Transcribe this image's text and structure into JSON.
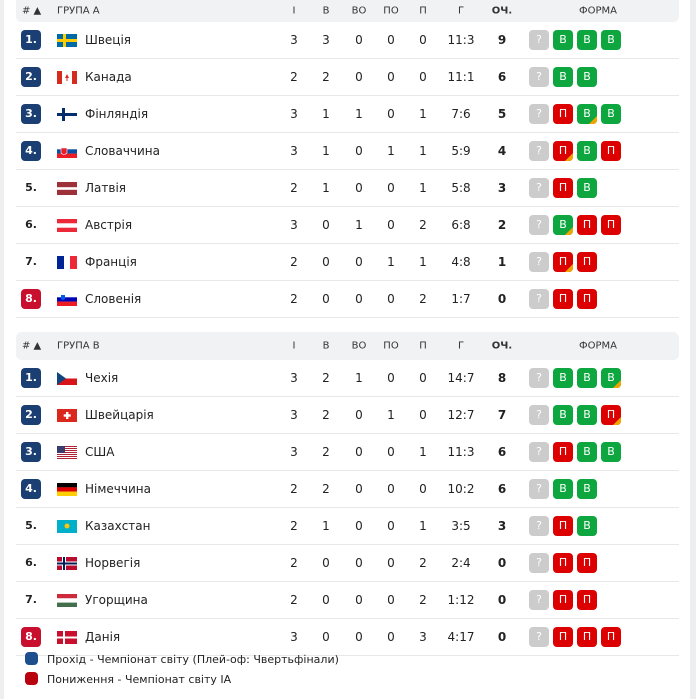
{
  "headers": {
    "rank": "# ▲",
    "i": "І",
    "w": "В",
    "ow": "ВО",
    "ol": "ПО",
    "l": "П",
    "g": "Г",
    "pts": "ОЧ.",
    "form": "ФОРМА"
  },
  "colors": {
    "qualify": "#1c3f73",
    "relegate": "#c8102e",
    "win": "#0ea63f",
    "loss": "#dc0000",
    "unknown": "#cccccc",
    "overtime": "#f0a500"
  },
  "groups": [
    {
      "title": "ГРУПА A",
      "rows": [
        {
          "rank": "1.",
          "zone": "q",
          "flag": "se",
          "team": "Швеція",
          "i": "3",
          "w": "3",
          "ow": "0",
          "ol": "0",
          "l": "0",
          "g": "11:3",
          "pts": "9",
          "form": [
            "?",
            "В",
            "В",
            "В"
          ],
          "ot": []
        },
        {
          "rank": "2.",
          "zone": "q",
          "flag": "ca",
          "team": "Канада",
          "i": "2",
          "w": "2",
          "ow": "0",
          "ol": "0",
          "l": "0",
          "g": "11:1",
          "pts": "6",
          "form": [
            "?",
            "В",
            "В"
          ],
          "ot": []
        },
        {
          "rank": "3.",
          "zone": "q",
          "flag": "fi",
          "team": "Фінляндія",
          "i": "3",
          "w": "1",
          "ow": "1",
          "ol": "0",
          "l": "1",
          "g": "7:6",
          "pts": "5",
          "form": [
            "?",
            "П",
            "В",
            "В"
          ],
          "ot": [
            2
          ]
        },
        {
          "rank": "4.",
          "zone": "q",
          "flag": "sk",
          "team": "Словаччина",
          "i": "3",
          "w": "1",
          "ow": "0",
          "ol": "1",
          "l": "1",
          "g": "5:9",
          "pts": "4",
          "form": [
            "?",
            "П",
            "В",
            "П"
          ],
          "ot": [
            1
          ]
        },
        {
          "rank": "5.",
          "zone": "",
          "flag": "lv",
          "team": "Латвія",
          "i": "2",
          "w": "1",
          "ow": "0",
          "ol": "0",
          "l": "1",
          "g": "5:8",
          "pts": "3",
          "form": [
            "?",
            "П",
            "В"
          ],
          "ot": []
        },
        {
          "rank": "6.",
          "zone": "",
          "flag": "at",
          "team": "Австрія",
          "i": "3",
          "w": "0",
          "ow": "1",
          "ol": "0",
          "l": "2",
          "g": "6:8",
          "pts": "2",
          "form": [
            "?",
            "В",
            "П",
            "П"
          ],
          "ot": [
            1
          ]
        },
        {
          "rank": "7.",
          "zone": "",
          "flag": "fr",
          "team": "Франція",
          "i": "2",
          "w": "0",
          "ow": "0",
          "ol": "1",
          "l": "1",
          "g": "4:8",
          "pts": "1",
          "form": [
            "?",
            "П",
            "П"
          ],
          "ot": [
            1
          ]
        },
        {
          "rank": "8.",
          "zone": "r",
          "flag": "si",
          "team": "Словенія",
          "i": "2",
          "w": "0",
          "ow": "0",
          "ol": "0",
          "l": "2",
          "g": "1:7",
          "pts": "0",
          "form": [
            "?",
            "П",
            "П"
          ],
          "ot": []
        }
      ]
    },
    {
      "title": "ГРУПА B",
      "rows": [
        {
          "rank": "1.",
          "zone": "q",
          "flag": "cz",
          "team": "Чехія",
          "i": "3",
          "w": "2",
          "ow": "1",
          "ol": "0",
          "l": "0",
          "g": "14:7",
          "pts": "8",
          "form": [
            "?",
            "В",
            "В",
            "В"
          ],
          "ot": [
            3
          ]
        },
        {
          "rank": "2.",
          "zone": "q",
          "flag": "ch",
          "team": "Швейцарія",
          "i": "3",
          "w": "2",
          "ow": "0",
          "ol": "1",
          "l": "0",
          "g": "12:7",
          "pts": "7",
          "form": [
            "?",
            "В",
            "В",
            "П"
          ],
          "ot": [
            3
          ]
        },
        {
          "rank": "3.",
          "zone": "q",
          "flag": "us",
          "team": "США",
          "i": "3",
          "w": "2",
          "ow": "0",
          "ol": "0",
          "l": "1",
          "g": "11:3",
          "pts": "6",
          "form": [
            "?",
            "П",
            "В",
            "В"
          ],
          "ot": []
        },
        {
          "rank": "4.",
          "zone": "q",
          "flag": "de",
          "team": "Німеччина",
          "i": "2",
          "w": "2",
          "ow": "0",
          "ol": "0",
          "l": "0",
          "g": "10:2",
          "pts": "6",
          "form": [
            "?",
            "В",
            "В"
          ],
          "ot": []
        },
        {
          "rank": "5.",
          "zone": "",
          "flag": "kz",
          "team": "Казахстан",
          "i": "2",
          "w": "1",
          "ow": "0",
          "ol": "0",
          "l": "1",
          "g": "3:5",
          "pts": "3",
          "form": [
            "?",
            "П",
            "В"
          ],
          "ot": []
        },
        {
          "rank": "6.",
          "zone": "",
          "flag": "no",
          "team": "Норвегія",
          "i": "2",
          "w": "0",
          "ow": "0",
          "ol": "0",
          "l": "2",
          "g": "2:4",
          "pts": "0",
          "form": [
            "?",
            "П",
            "П"
          ],
          "ot": []
        },
        {
          "rank": "7.",
          "zone": "",
          "flag": "hu",
          "team": "Угорщина",
          "i": "2",
          "w": "0",
          "ow": "0",
          "ol": "0",
          "l": "2",
          "g": "1:12",
          "pts": "0",
          "form": [
            "?",
            "П",
            "П"
          ],
          "ot": []
        },
        {
          "rank": "8.",
          "zone": "r",
          "flag": "dk",
          "team": "Данія",
          "i": "3",
          "w": "0",
          "ow": "0",
          "ol": "0",
          "l": "3",
          "g": "4:17",
          "pts": "0",
          "form": [
            "?",
            "П",
            "П",
            "П"
          ],
          "ot": []
        }
      ]
    }
  ],
  "legend": {
    "qualify": "Прохід - Чемпіонат світу (Плей-оф: Чвертьфінали)",
    "relegate": "Пониження - Чемпіонат світу IA"
  }
}
